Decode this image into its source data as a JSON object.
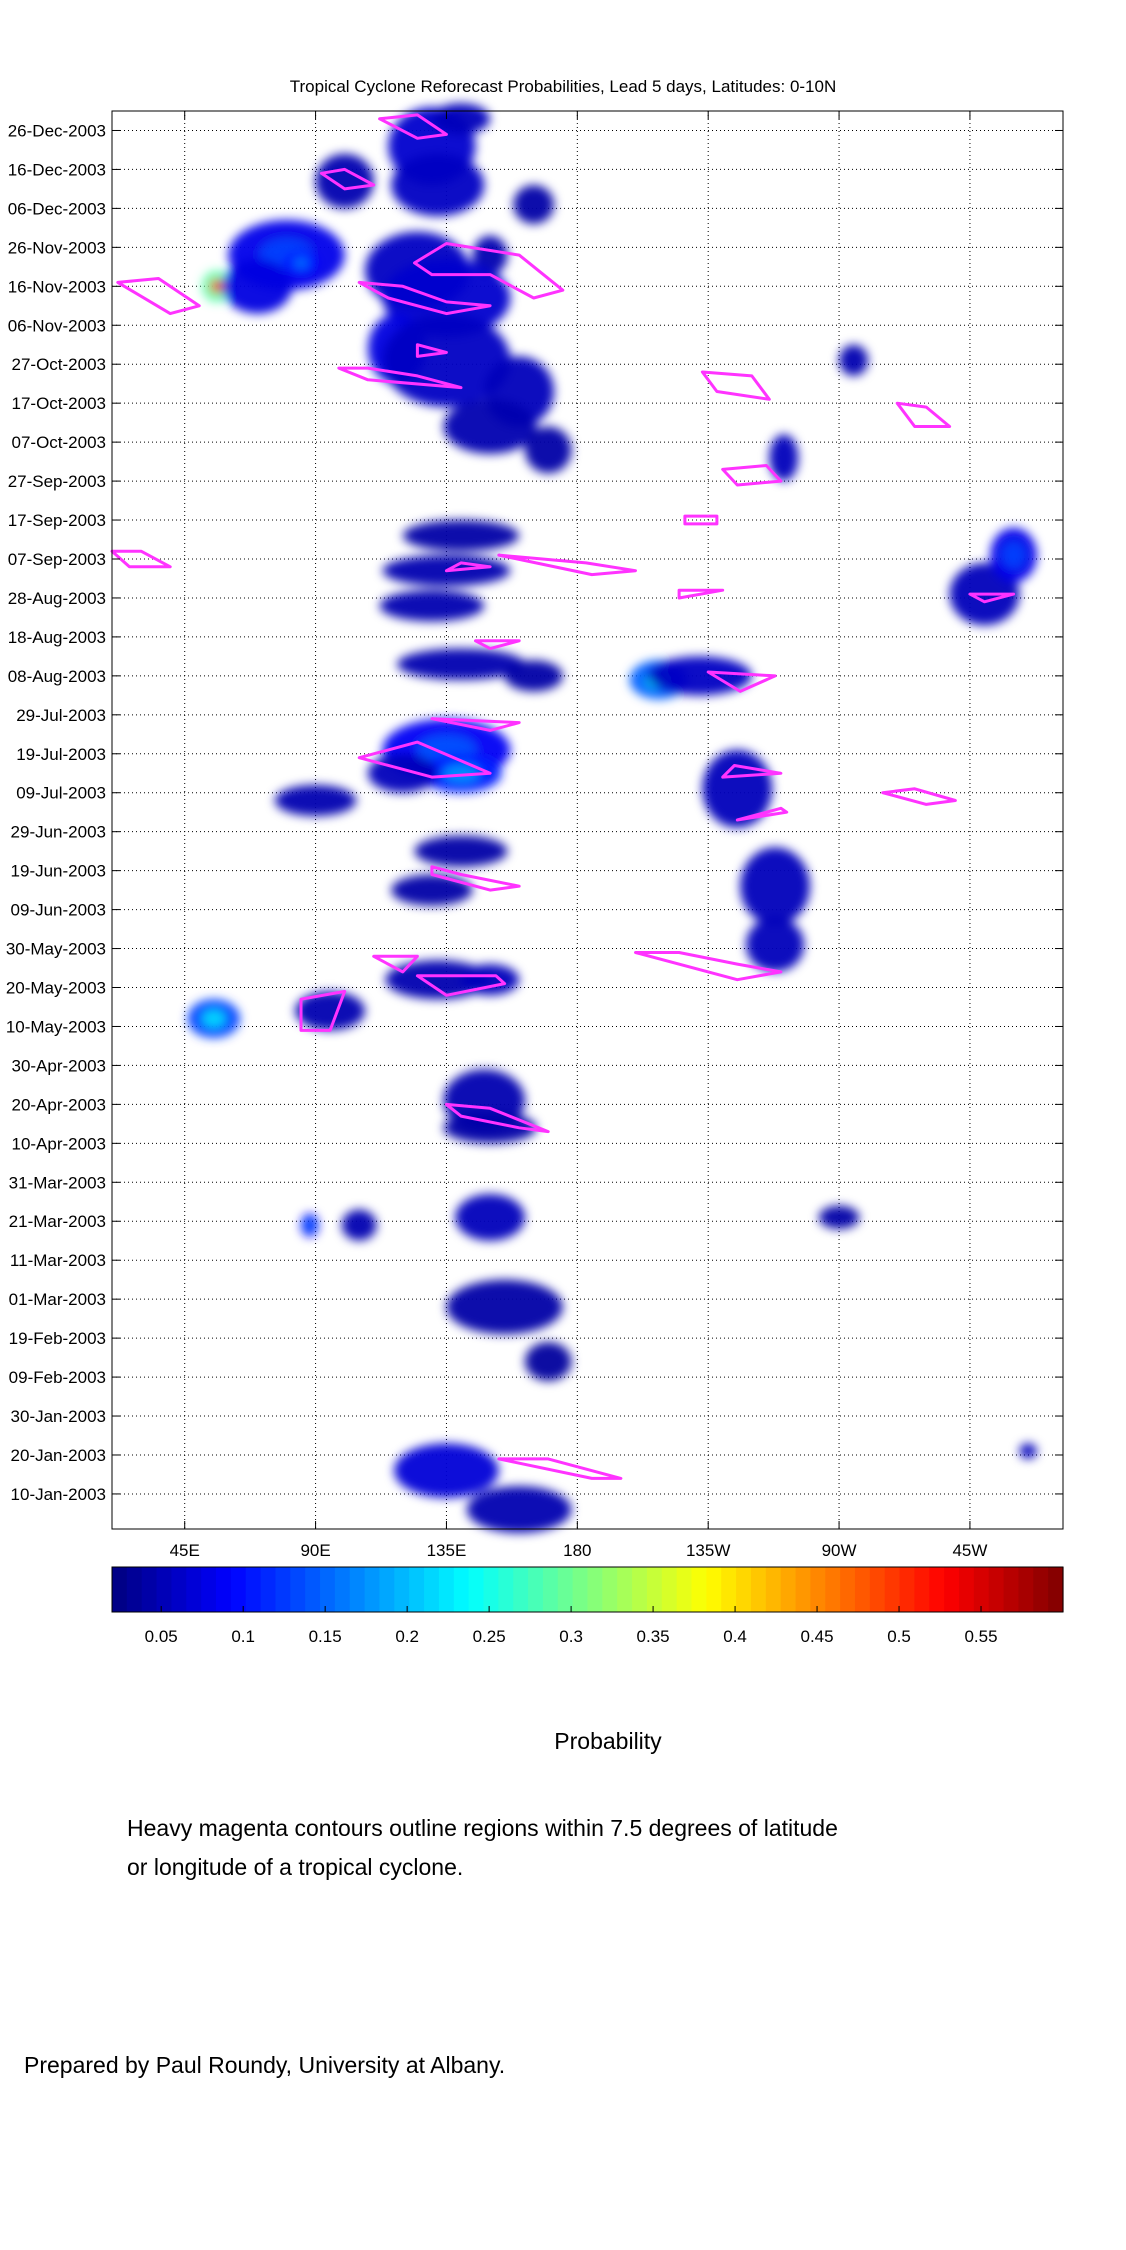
{
  "chart_data": {
    "type": "heatmap",
    "title": "Tropical Cyclone Reforecast Probabilities, Lead 5 days, Latitudes: 0-10N",
    "xlabel": "",
    "ylabel": "",
    "x_ticks": [
      "45E",
      "90E",
      "135E",
      "180",
      "135W",
      "90W",
      "45W"
    ],
    "x_tick_lon": [
      45,
      90,
      135,
      180,
      225,
      270,
      315
    ],
    "x_range": [
      20,
      347
    ],
    "y_ticks": [
      "26-Dec-2003",
      "16-Dec-2003",
      "06-Dec-2003",
      "26-Nov-2003",
      "16-Nov-2003",
      "06-Nov-2003",
      "27-Oct-2003",
      "17-Oct-2003",
      "07-Oct-2003",
      "27-Sep-2003",
      "17-Sep-2003",
      "07-Sep-2003",
      "28-Aug-2003",
      "18-Aug-2003",
      "08-Aug-2003",
      "29-Jul-2003",
      "19-Jul-2003",
      "09-Jul-2003",
      "29-Jun-2003",
      "19-Jun-2003",
      "09-Jun-2003",
      "30-May-2003",
      "20-May-2003",
      "10-May-2003",
      "30-Apr-2003",
      "20-Apr-2003",
      "10-Apr-2003",
      "31-Mar-2003",
      "21-Mar-2003",
      "11-Mar-2003",
      "01-Mar-2003",
      "19-Feb-2003",
      "09-Feb-2003",
      "30-Jan-2003",
      "20-Jan-2003",
      "10-Jan-2003"
    ],
    "y_tick_day": [
      359,
      349,
      339,
      329,
      319,
      309,
      299,
      289,
      279,
      269,
      259,
      249,
      239,
      229,
      219,
      209,
      199,
      189,
      179,
      169,
      159,
      149,
      139,
      129,
      119,
      109,
      99,
      89,
      79,
      69,
      59,
      49,
      39,
      29,
      19,
      9
    ],
    "y_range_day": [
      0,
      364
    ],
    "grid": true,
    "colorbar": {
      "label": "Probability",
      "ticks": [
        "0.05",
        "0.1",
        "0.15",
        "0.2",
        "0.25",
        "0.3",
        "0.35",
        "0.4",
        "0.45",
        "0.5",
        "0.55"
      ],
      "tick_values": [
        0.05,
        0.1,
        0.15,
        0.2,
        0.25,
        0.3,
        0.35,
        0.4,
        0.45,
        0.5,
        0.55
      ],
      "range": [
        0.02,
        0.6
      ],
      "colormap": "jet"
    },
    "blobs": [
      {
        "lon": 130,
        "day": 355,
        "dlon": 15,
        "dday": 10,
        "p": 0.1
      },
      {
        "lon": 140,
        "day": 362,
        "dlon": 10,
        "dday": 4,
        "p": 0.08
      },
      {
        "lon": 100,
        "day": 346,
        "dlon": 10,
        "dday": 7,
        "p": 0.07
      },
      {
        "lon": 132,
        "day": 345,
        "dlon": 16,
        "dday": 8,
        "p": 0.09
      },
      {
        "lon": 165,
        "day": 340,
        "dlon": 7,
        "dday": 5,
        "p": 0.06
      },
      {
        "lon": 80,
        "day": 327,
        "dlon": 20,
        "dday": 9,
        "p": 0.13
      },
      {
        "lon": 85,
        "day": 325,
        "dlon": 6,
        "dday": 3,
        "p": 0.16
      },
      {
        "lon": 125,
        "day": 323,
        "dlon": 18,
        "dday": 10,
        "p": 0.09
      },
      {
        "lon": 150,
        "day": 327,
        "dlon": 6,
        "dday": 5,
        "p": 0.07
      },
      {
        "lon": 56,
        "day": 319,
        "dlon": 5,
        "dday": 4,
        "p": 0.5
      },
      {
        "lon": 70,
        "day": 319,
        "dlon": 12,
        "dday": 7,
        "p": 0.12
      },
      {
        "lon": 135,
        "day": 316,
        "dlon": 22,
        "dday": 10,
        "p": 0.1
      },
      {
        "lon": 118,
        "day": 303,
        "dlon": 10,
        "dday": 9,
        "p": 0.12
      },
      {
        "lon": 135,
        "day": 300,
        "dlon": 22,
        "dday": 12,
        "p": 0.09
      },
      {
        "lon": 160,
        "day": 292,
        "dlon": 12,
        "dday": 9,
        "p": 0.08
      },
      {
        "lon": 150,
        "day": 283,
        "dlon": 16,
        "dday": 7,
        "p": 0.07
      },
      {
        "lon": 170,
        "day": 277,
        "dlon": 8,
        "dday": 6,
        "p": 0.06
      },
      {
        "lon": 140,
        "day": 255,
        "dlon": 20,
        "dday": 4,
        "p": 0.06
      },
      {
        "lon": 135,
        "day": 246,
        "dlon": 22,
        "dday": 4,
        "p": 0.07
      },
      {
        "lon": 130,
        "day": 237,
        "dlon": 18,
        "dday": 4,
        "p": 0.07
      },
      {
        "lon": 140,
        "day": 222,
        "dlon": 22,
        "dday": 4,
        "p": 0.07
      },
      {
        "lon": 165,
        "day": 219,
        "dlon": 10,
        "dday": 4,
        "p": 0.06
      },
      {
        "lon": 208,
        "day": 218,
        "dlon": 10,
        "dday": 5,
        "p": 0.25
      },
      {
        "lon": 222,
        "day": 219,
        "dlon": 18,
        "dday": 5,
        "p": 0.09
      },
      {
        "lon": 135,
        "day": 200,
        "dlon": 22,
        "dday": 8,
        "p": 0.14
      },
      {
        "lon": 140,
        "day": 194,
        "dlon": 14,
        "dday": 5,
        "p": 0.18
      },
      {
        "lon": 120,
        "day": 194,
        "dlon": 12,
        "dday": 5,
        "p": 0.08
      },
      {
        "lon": 90,
        "day": 187,
        "dlon": 14,
        "dday": 4,
        "p": 0.07
      },
      {
        "lon": 235,
        "day": 190,
        "dlon": 12,
        "dday": 10,
        "p": 0.08
      },
      {
        "lon": 248,
        "day": 165,
        "dlon": 12,
        "dday": 10,
        "p": 0.08
      },
      {
        "lon": 248,
        "day": 150,
        "dlon": 10,
        "dday": 7,
        "p": 0.08
      },
      {
        "lon": 140,
        "day": 174,
        "dlon": 16,
        "dday": 4,
        "p": 0.06
      },
      {
        "lon": 130,
        "day": 164,
        "dlon": 14,
        "dday": 4,
        "p": 0.06
      },
      {
        "lon": 132,
        "day": 141,
        "dlon": 18,
        "dday": 5,
        "p": 0.07
      },
      {
        "lon": 150,
        "day": 141,
        "dlon": 10,
        "dday": 4,
        "p": 0.08
      },
      {
        "lon": 55,
        "day": 131,
        "dlon": 9,
        "dday": 5,
        "p": 0.22
      },
      {
        "lon": 95,
        "day": 133,
        "dlon": 12,
        "dday": 5,
        "p": 0.07
      },
      {
        "lon": 148,
        "day": 110,
        "dlon": 14,
        "dday": 8,
        "p": 0.07
      },
      {
        "lon": 150,
        "day": 103,
        "dlon": 16,
        "dday": 4,
        "p": 0.06
      },
      {
        "lon": 150,
        "day": 80,
        "dlon": 12,
        "dday": 6,
        "p": 0.08
      },
      {
        "lon": 105,
        "day": 78,
        "dlon": 6,
        "dday": 4,
        "p": 0.07
      },
      {
        "lon": 88,
        "day": 78,
        "dlon": 3,
        "dday": 3,
        "p": 0.15
      },
      {
        "lon": 155,
        "day": 57,
        "dlon": 20,
        "dday": 7,
        "p": 0.06
      },
      {
        "lon": 170,
        "day": 43,
        "dlon": 8,
        "dday": 5,
        "p": 0.05
      },
      {
        "lon": 135,
        "day": 15,
        "dlon": 18,
        "dday": 7,
        "p": 0.11
      },
      {
        "lon": 160,
        "day": 5,
        "dlon": 18,
        "dday": 6,
        "p": 0.07
      },
      {
        "lon": 320,
        "day": 240,
        "dlon": 12,
        "dday": 8,
        "p": 0.08
      },
      {
        "lon": 330,
        "day": 250,
        "dlon": 8,
        "dday": 7,
        "p": 0.13
      },
      {
        "lon": 275,
        "day": 300,
        "dlon": 5,
        "dday": 4,
        "p": 0.07
      },
      {
        "lon": 251,
        "day": 275,
        "dlon": 5,
        "dday": 6,
        "p": 0.08
      },
      {
        "lon": 270,
        "day": 80,
        "dlon": 7,
        "dday": 3,
        "p": 0.06
      },
      {
        "lon": 335,
        "day": 20,
        "dlon": 3,
        "dday": 2,
        "p": 0.08
      }
    ],
    "tc_contours": [
      {
        "points": [
          [
            112,
            362
          ],
          [
            125,
            363
          ],
          [
            135,
            358
          ],
          [
            125,
            357
          ]
        ]
      },
      {
        "points": [
          [
            92,
            348
          ],
          [
            100,
            349
          ],
          [
            110,
            345
          ],
          [
            100,
            344
          ]
        ]
      },
      {
        "points": [
          [
            124,
            325
          ],
          [
            135,
            330
          ],
          [
            160,
            327
          ],
          [
            175,
            318
          ],
          [
            165,
            316
          ],
          [
            150,
            322
          ],
          [
            130,
            322
          ]
        ]
      },
      {
        "points": [
          [
            22,
            320
          ],
          [
            36,
            321
          ],
          [
            50,
            314
          ],
          [
            40,
            312
          ]
        ]
      },
      {
        "points": [
          [
            105,
            320
          ],
          [
            120,
            319
          ],
          [
            135,
            315
          ],
          [
            150,
            314
          ],
          [
            135,
            312
          ],
          [
            115,
            316
          ]
        ]
      },
      {
        "points": [
          [
            98,
            298
          ],
          [
            108,
            295
          ],
          [
            140,
            293
          ],
          [
            125,
            296
          ],
          [
            108,
            298
          ]
        ]
      },
      {
        "points": [
          [
            125,
            304
          ],
          [
            135,
            302
          ],
          [
            125,
            301
          ]
        ]
      },
      {
        "points": [
          [
            223,
            297
          ],
          [
            240,
            296
          ],
          [
            246,
            290
          ],
          [
            228,
            292
          ]
        ]
      },
      {
        "points": [
          [
            290,
            289
          ],
          [
            300,
            288
          ],
          [
            308,
            283
          ],
          [
            296,
            283
          ]
        ]
      },
      {
        "points": [
          [
            230,
            272
          ],
          [
            245,
            273
          ],
          [
            250,
            269
          ],
          [
            235,
            268
          ]
        ]
      },
      {
        "points": [
          [
            217,
            260
          ],
          [
            228,
            260
          ],
          [
            228,
            258
          ],
          [
            217,
            258
          ]
        ]
      },
      {
        "points": [
          [
            20,
            251
          ],
          [
            30,
            251
          ],
          [
            40,
            247
          ],
          [
            26,
            247
          ]
        ]
      },
      {
        "points": [
          [
            153,
            250
          ],
          [
            183,
            248
          ],
          [
            200,
            246
          ],
          [
            185,
            245
          ]
        ]
      },
      {
        "points": [
          [
            140,
            248
          ],
          [
            150,
            247
          ],
          [
            135,
            246
          ]
        ]
      },
      {
        "points": [
          [
            215,
            241
          ],
          [
            230,
            241
          ],
          [
            215,
            239
          ]
        ]
      },
      {
        "points": [
          [
            315,
            240
          ],
          [
            330,
            240
          ],
          [
            320,
            238
          ]
        ]
      },
      {
        "points": [
          [
            145,
            228
          ],
          [
            160,
            228
          ],
          [
            150,
            226
          ]
        ]
      },
      {
        "points": [
          [
            225,
            220
          ],
          [
            248,
            219
          ],
          [
            236,
            215
          ]
        ]
      },
      {
        "points": [
          [
            130,
            208
          ],
          [
            160,
            207
          ],
          [
            150,
            205
          ]
        ]
      },
      {
        "points": [
          [
            105,
            198
          ],
          [
            125,
            202
          ],
          [
            150,
            194
          ],
          [
            130,
            193
          ]
        ]
      },
      {
        "points": [
          [
            234,
            196
          ],
          [
            250,
            194
          ],
          [
            230,
            193
          ]
        ]
      },
      {
        "points": [
          [
            250,
            185
          ],
          [
            252,
            184
          ],
          [
            235,
            182
          ]
        ]
      },
      {
        "points": [
          [
            285,
            189
          ],
          [
            300,
            186
          ],
          [
            310,
            187
          ],
          [
            296,
            190
          ]
        ]
      },
      {
        "points": [
          [
            130,
            170
          ],
          [
            140,
            168
          ],
          [
            160,
            165
          ],
          [
            150,
            164
          ],
          [
            130,
            168
          ]
        ]
      },
      {
        "points": [
          [
            200,
            148
          ],
          [
            215,
            148
          ],
          [
            235,
            145
          ],
          [
            250,
            143
          ],
          [
            235,
            141
          ]
        ]
      },
      {
        "points": [
          [
            110,
            147
          ],
          [
            125,
            147
          ],
          [
            120,
            143
          ]
        ]
      },
      {
        "points": [
          [
            125,
            142
          ],
          [
            135,
            142
          ],
          [
            152,
            142
          ],
          [
            155,
            140
          ],
          [
            135,
            137
          ]
        ]
      },
      {
        "points": [
          [
            85,
            136
          ],
          [
            100,
            138
          ],
          [
            95,
            128
          ],
          [
            85,
            128
          ]
        ]
      },
      {
        "points": [
          [
            135,
            109
          ],
          [
            150,
            108
          ],
          [
            170,
            102
          ],
          [
            160,
            103
          ],
          [
            140,
            106
          ]
        ]
      },
      {
        "points": [
          [
            153,
            18
          ],
          [
            170,
            18
          ],
          [
            195,
            13
          ],
          [
            185,
            13
          ]
        ]
      }
    ]
  }
}
